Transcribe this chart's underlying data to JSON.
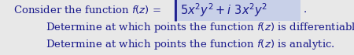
{
  "background_color": "#e8e8e8",
  "text_color": "#1a1a8c",
  "box_color": "#c8d0e8",
  "bar_color": "#1a1a8c",
  "fontsize_main": 9.5,
  "fontsize_formula": 10.5,
  "fig_width": 4.5,
  "fig_height": 0.71,
  "dpi": 100,
  "line1_left": "Consider the function $f(z)$ =",
  "line1_formula": "$5x^2y^2 + i\\ 3x^2y^2$",
  "line2": "Determine at which points the function $f(z)$ is differentiable.",
  "line3": "Determine at which points the function $f(z)$ is analytic."
}
